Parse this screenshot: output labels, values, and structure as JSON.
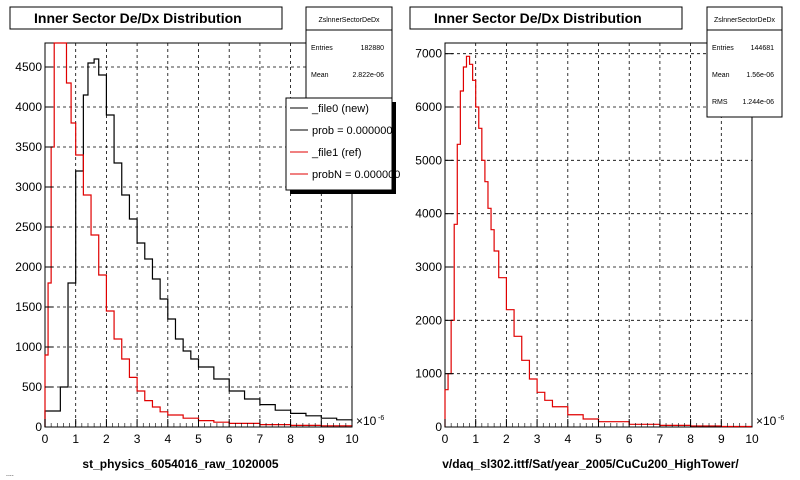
{
  "chart_data": [
    {
      "type": "line",
      "title": "Inner Sector De/Dx Distribution",
      "xlabel": "st_physics_6054016_raw_1020005",
      "x_exponent_label": "×10",
      "x_exponent_power": "-6",
      "xlim": [
        0,
        10
      ],
      "ylim": [
        0,
        4800
      ],
      "x_ticks": [
        0,
        1,
        2,
        3,
        4,
        5,
        6,
        7,
        8,
        9,
        10
      ],
      "y_ticks": [
        0,
        500,
        1000,
        1500,
        2000,
        2500,
        3000,
        3500,
        4000,
        4500
      ],
      "grid": true,
      "stats": {
        "header": "ZslnnerSectorDeDx",
        "rows": [
          {
            "label": "Entries",
            "value": "182880"
          },
          {
            "label": "Mean",
            "value": "2.822e-06"
          }
        ]
      },
      "legend": {
        "placement": "top-right",
        "entries": [
          {
            "text": "_file0 (new)",
            "color": "#000000"
          },
          {
            "text": "prob = 0.000000",
            "color": "#000000"
          },
          {
            "text": "_file1 (ref)",
            "color": "#e00000"
          },
          {
            "text": "probN = 0.000000",
            "color": "#e00000"
          }
        ]
      },
      "series": [
        {
          "name": "_file0 (new)",
          "color": "#000000",
          "x": [
            0,
            0.5,
            0.75,
            1.0,
            1.25,
            1.4,
            1.6,
            1.75,
            2.0,
            2.25,
            2.5,
            2.75,
            3.0,
            3.25,
            3.5,
            3.75,
            4.0,
            4.25,
            4.5,
            4.75,
            5.0,
            5.5,
            6.0,
            6.5,
            7.0,
            7.5,
            8.0,
            8.5,
            9.0,
            9.5,
            10.0
          ],
          "y": [
            200,
            500,
            1800,
            3200,
            4150,
            4550,
            4600,
            4400,
            3900,
            3300,
            2900,
            2600,
            2300,
            2100,
            1850,
            1600,
            1350,
            1100,
            950,
            850,
            750,
            600,
            450,
            350,
            280,
            210,
            170,
            140,
            110,
            90,
            70
          ]
        },
        {
          "name": "_file1 (ref)",
          "color": "#e00000",
          "x": [
            0,
            0.1,
            0.2,
            0.3,
            0.4,
            0.5,
            0.55,
            0.7,
            0.85,
            1.0,
            1.25,
            1.5,
            1.75,
            2.0,
            2.25,
            2.5,
            2.75,
            3.0,
            3.25,
            3.5,
            3.75,
            4.0,
            4.5,
            5.0,
            5.5,
            6.0,
            7.0,
            8.0,
            9.0,
            10.0
          ],
          "y": [
            900,
            1800,
            3500,
            4800,
            4800,
            4800,
            4800,
            4300,
            3800,
            3400,
            2900,
            2400,
            1900,
            1450,
            1100,
            850,
            620,
            450,
            330,
            250,
            190,
            150,
            110,
            80,
            60,
            45,
            30,
            20,
            15,
            10
          ]
        }
      ]
    },
    {
      "type": "line",
      "title": "Inner Sector De/Dx Distribution",
      "xlabel": "v/daq_sl302.ittf/Sat/year_2005/CuCu200_HighTower/",
      "x_exponent_label": "×10",
      "x_exponent_power": "-6",
      "xlim": [
        0,
        10
      ],
      "ylim": [
        0,
        7200
      ],
      "x_ticks": [
        0,
        1,
        2,
        3,
        4,
        5,
        6,
        7,
        8,
        9,
        10
      ],
      "y_ticks": [
        0,
        1000,
        2000,
        3000,
        4000,
        5000,
        6000,
        7000
      ],
      "grid": true,
      "stats": {
        "header": "ZslnnerSectorDeDx",
        "rows": [
          {
            "label": "Entries",
            "value": "144681"
          },
          {
            "label": "Mean",
            "value": "1.56e-06"
          },
          {
            "label": "RMS",
            "value": "1.244e-06"
          }
        ]
      },
      "series": [
        {
          "name": "",
          "color": "#e00000",
          "x": [
            0,
            0.1,
            0.2,
            0.3,
            0.4,
            0.5,
            0.6,
            0.7,
            0.8,
            0.9,
            1.0,
            1.1,
            1.2,
            1.3,
            1.4,
            1.5,
            1.6,
            1.75,
            2.0,
            2.25,
            2.5,
            2.75,
            3.0,
            3.25,
            3.5,
            4.0,
            4.5,
            5.0,
            6.0,
            7.0,
            8.0,
            9.0,
            10.0
          ],
          "y": [
            700,
            1000,
            2000,
            3800,
            5300,
            6300,
            6750,
            6950,
            6800,
            6500,
            6000,
            5600,
            5000,
            4600,
            4100,
            3700,
            3300,
            2800,
            2200,
            1700,
            1250,
            900,
            650,
            500,
            380,
            230,
            150,
            100,
            50,
            30,
            20,
            10,
            5
          ]
        }
      ]
    }
  ],
  "footer_text": "...."
}
